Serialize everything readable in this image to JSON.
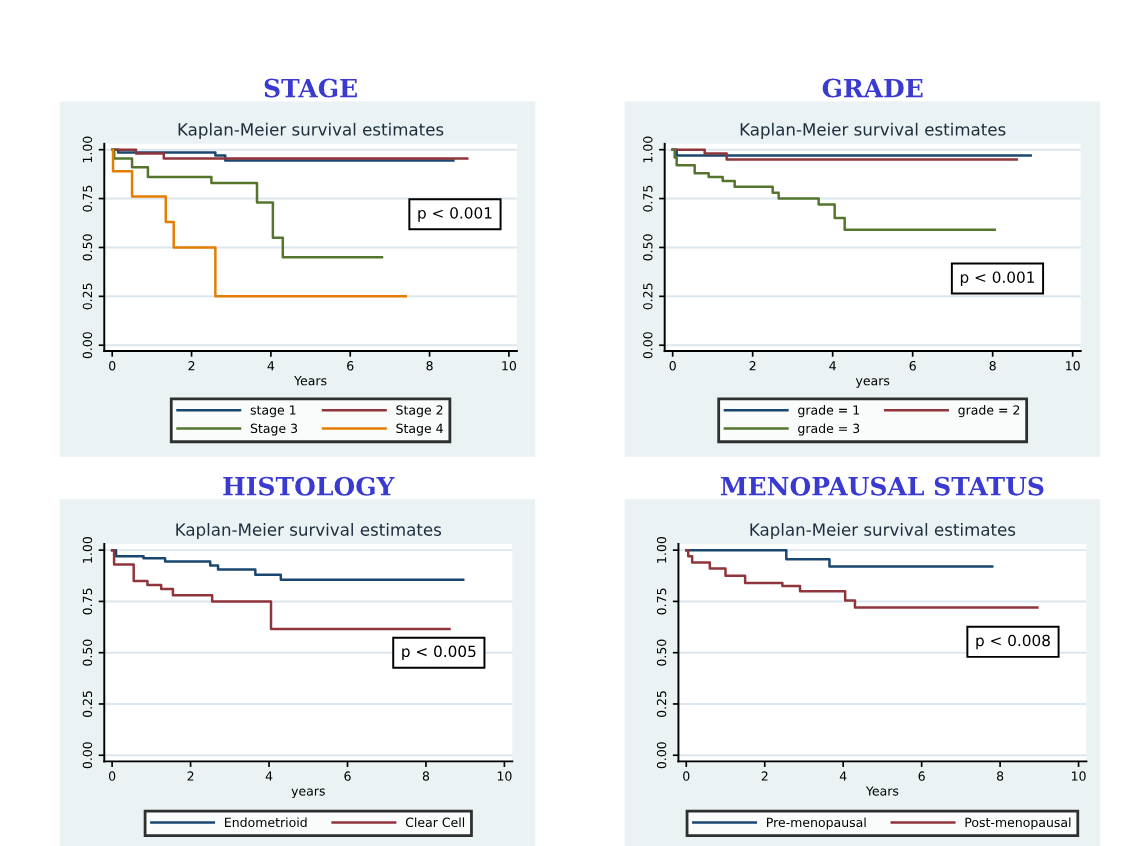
{
  "chart_data": [
    {
      "type": "step",
      "title": "STAGE",
      "subtitle": "Kaplan-Meier survival estimates",
      "xlabel": "Years",
      "annotations": [
        "p < 0.001"
      ],
      "xlim": [
        -0.2,
        10.2
      ],
      "xticks": [
        0,
        2,
        4,
        6,
        8,
        10
      ],
      "ylim": [
        -0.03,
        1.03
      ],
      "yticks": [
        {
          "value": 0,
          "label": "0.00"
        },
        {
          "value": 0.25,
          "label": "0.25"
        },
        {
          "value": 0.5,
          "label": "0.50"
        },
        {
          "value": 0.75,
          "label": "0.75"
        },
        {
          "value": 1,
          "label": "1.00"
        }
      ],
      "grid": "y",
      "legend": "bottom",
      "series": [
        {
          "name": "stage 1",
          "color": "#1a476f",
          "x": [
            0,
            0.15,
            2.6,
            2.85,
            8.6
          ],
          "values": [
            1.0,
            0.985,
            0.97,
            0.945,
            0.945
          ]
        },
        {
          "name": "Stage 2",
          "color": "#90353b",
          "x": [
            0,
            0.6,
            1.3,
            8.95
          ],
          "values": [
            1.0,
            0.98,
            0.955,
            0.955
          ]
        },
        {
          "name": "Stage 3",
          "color": "#55752f",
          "x": [
            0,
            0.05,
            0.5,
            0.9,
            2.5,
            3.65,
            4.05,
            4.3,
            6.8
          ],
          "values": [
            1.0,
            0.955,
            0.91,
            0.86,
            0.83,
            0.73,
            0.55,
            0.45,
            0.45
          ]
        },
        {
          "name": "Stage 4",
          "color": "#e37e00",
          "x": [
            0,
            0.02,
            0.5,
            1.35,
            1.55,
            2.6,
            7.4
          ],
          "values": [
            1.0,
            0.89,
            0.76,
            0.63,
            0.5,
            0.25,
            0.25
          ]
        }
      ]
    },
    {
      "type": "step",
      "title": "GRADE",
      "subtitle": "Kaplan-Meier survival estimates",
      "xlabel": "years",
      "annotations": [
        "p < 0.001"
      ],
      "xlim": [
        -0.2,
        10.2
      ],
      "xticks": [
        0,
        2,
        4,
        6,
        8,
        10
      ],
      "ylim": [
        -0.03,
        1.03
      ],
      "yticks": [
        {
          "value": 0,
          "label": "0.00"
        },
        {
          "value": 0.25,
          "label": "0.25"
        },
        {
          "value": 0.5,
          "label": "0.50"
        },
        {
          "value": 0.75,
          "label": "0.75"
        },
        {
          "value": 1,
          "label": "1.00"
        }
      ],
      "grid": "y",
      "legend": "bottom",
      "series": [
        {
          "name": "grade = 1",
          "color": "#1a476f",
          "x": [
            0,
            0.1,
            8.95
          ],
          "values": [
            1.0,
            0.97,
            0.97
          ]
        },
        {
          "name": "grade = 2",
          "color": "#90353b",
          "x": [
            0,
            0.8,
            1.35,
            8.6
          ],
          "values": [
            1.0,
            0.98,
            0.95,
            0.95
          ]
        },
        {
          "name": "grade = 3",
          "color": "#55752f",
          "x": [
            0,
            0.05,
            0.1,
            0.55,
            0.9,
            1.25,
            1.55,
            2.5,
            2.65,
            3.65,
            4.05,
            4.3,
            8.05
          ],
          "values": [
            1.0,
            0.96,
            0.92,
            0.88,
            0.86,
            0.84,
            0.81,
            0.78,
            0.75,
            0.72,
            0.65,
            0.59,
            0.59
          ]
        }
      ]
    },
    {
      "type": "step",
      "title": "HISTOLOGY",
      "subtitle": "Kaplan-Meier survival estimates",
      "xlabel": "years",
      "annotations": [
        "p < 0.005"
      ],
      "xlim": [
        -0.2,
        10.2
      ],
      "xticks": [
        0,
        2,
        4,
        6,
        8,
        10
      ],
      "ylim": [
        -0.03,
        1.03
      ],
      "yticks": [
        {
          "value": 0,
          "label": "0.00"
        },
        {
          "value": 0.25,
          "label": "0.25"
        },
        {
          "value": 0.5,
          "label": "0.50"
        },
        {
          "value": 0.75,
          "label": "0.75"
        },
        {
          "value": 1,
          "label": "1.00"
        }
      ],
      "grid": "y",
      "legend": "bottom",
      "series": [
        {
          "name": "Endometrioid",
          "color": "#1a476f",
          "x": [
            0,
            0.1,
            0.8,
            1.35,
            2.5,
            2.7,
            3.65,
            4.3,
            8.95
          ],
          "values": [
            1.0,
            0.97,
            0.96,
            0.945,
            0.925,
            0.905,
            0.88,
            0.855,
            0.855
          ]
        },
        {
          "name": "Clear Cell",
          "color": "#90353b",
          "x": [
            0,
            0.05,
            0.55,
            0.9,
            1.25,
            1.55,
            2.55,
            4.05,
            8.6
          ],
          "values": [
            1.0,
            0.93,
            0.85,
            0.83,
            0.81,
            0.78,
            0.75,
            0.615,
            0.615
          ]
        }
      ]
    },
    {
      "type": "step",
      "title": "MENOPAUSAL STATUS",
      "subtitle": "Kaplan-Meier survival estimates",
      "xlabel": "Years",
      "annotations": [
        "p < 0.008"
      ],
      "xlim": [
        -0.2,
        10.2
      ],
      "xticks": [
        0,
        2,
        4,
        6,
        8,
        10
      ],
      "ylim": [
        -0.03,
        1.03
      ],
      "yticks": [
        {
          "value": 0,
          "label": "0.00"
        },
        {
          "value": 0.25,
          "label": "0.25"
        },
        {
          "value": 0.5,
          "label": "0.50"
        },
        {
          "value": 0.75,
          "label": "0.75"
        },
        {
          "value": 1,
          "label": "1.00"
        }
      ],
      "grid": "y",
      "legend": "bottom",
      "series": [
        {
          "name": "Pre-menopausal",
          "color": "#1a476f",
          "x": [
            0,
            2.55,
            3.65,
            7.8
          ],
          "values": [
            1.0,
            0.955,
            0.92,
            0.92
          ]
        },
        {
          "name": "Post-menopausal",
          "color": "#90353b",
          "x": [
            0,
            0.05,
            0.15,
            0.6,
            1.0,
            1.5,
            2.45,
            2.9,
            4.05,
            4.3,
            8.95
          ],
          "values": [
            1.0,
            0.97,
            0.94,
            0.91,
            0.875,
            0.84,
            0.825,
            0.8,
            0.755,
            0.72,
            0.72
          ]
        }
      ]
    }
  ]
}
